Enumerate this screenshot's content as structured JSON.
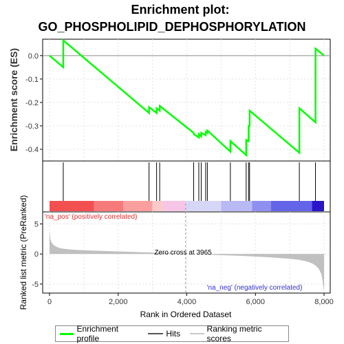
{
  "chart_data": {
    "type": "line",
    "title_line1": "Enrichment plot:",
    "title_line2": "GO_PHOSPHOLIPID_DEPHOSPHORYLATION",
    "top_ylabel": "Enrichment score (ES)",
    "bottom_ylabel": "Ranked list metric (PreRanked)",
    "xlabel": "Rank in Ordered Dataset",
    "xlim": [
      0,
      8000
    ],
    "x_ticks": [
      "0",
      "2,000",
      "4,000",
      "6,000",
      "8,000"
    ],
    "x_tick_values": [
      0,
      2000,
      4000,
      6000,
      8000
    ],
    "minor_x_ticks": [
      1000,
      3000,
      5000,
      7000
    ],
    "es_ylim": [
      -0.45,
      0.07
    ],
    "es_ticks": [
      "0.0",
      "-0.1",
      "-0.2",
      "-0.3",
      "-0.4"
    ],
    "es_tick_values": [
      0.0,
      -0.1,
      -0.2,
      -0.3,
      -0.4
    ],
    "metric_ylim": [
      -6.5,
      7
    ],
    "metric_ticks": [
      "5",
      "0",
      "-5"
    ],
    "metric_tick_values": [
      5,
      0,
      -5
    ],
    "zero_cross_label": "Zero cross at 3965",
    "zero_cross_rank": 3965,
    "pos_label": "'na_pos' (positively correlated)",
    "neg_label": "'na_neg' (negatively correlated)",
    "hits": [
      400,
      2900,
      3120,
      3210,
      4200,
      4350,
      4420,
      4550,
      4600,
      5270,
      5730,
      5800,
      5830,
      7280,
      7750
    ],
    "es_curve": {
      "x": [
        0,
        400,
        401,
        2900,
        2901,
        3120,
        3121,
        3210,
        3211,
        4200,
        4201,
        4350,
        4351,
        4420,
        4421,
        4550,
        4551,
        4600,
        4601,
        5270,
        5271,
        5730,
        5731,
        5800,
        5801,
        5830,
        5831,
        7280,
        7281,
        7750,
        7751,
        8000
      ],
      "y": [
        0.0,
        -0.05,
        0.065,
        -0.245,
        -0.22,
        -0.245,
        -0.225,
        -0.235,
        -0.215,
        -0.33,
        -0.335,
        -0.35,
        -0.335,
        -0.345,
        -0.33,
        -0.34,
        -0.325,
        -0.33,
        -0.32,
        -0.41,
        -0.365,
        -0.425,
        -0.36,
        -0.365,
        -0.3,
        -0.3,
        -0.235,
        -0.415,
        -0.225,
        -0.285,
        0.03,
        0.0
      ]
    },
    "metric_profile": {
      "x": [
        0,
        20,
        60,
        120,
        200,
        300,
        400,
        600,
        800,
        1000,
        1500,
        2000,
        2500,
        3000,
        3500,
        3965,
        4500,
        5000,
        5500,
        6000,
        6500,
        7000,
        7300,
        7500,
        7650,
        7750,
        7850,
        7920,
        7960,
        8000
      ],
      "y": [
        4.0,
        2.6,
        1.9,
        1.5,
        1.2,
        1.0,
        0.88,
        0.75,
        0.68,
        0.62,
        0.52,
        0.42,
        0.33,
        0.24,
        0.13,
        0.0,
        -0.1,
        -0.2,
        -0.3,
        -0.42,
        -0.58,
        -0.8,
        -1.0,
        -1.25,
        -1.55,
        -1.9,
        -2.5,
        -3.3,
        -4.5,
        -6.3
      ]
    },
    "colors": {
      "es_line": "#00ff00",
      "hit": "#000000",
      "metric_fill": "#c0c0c0",
      "pos_text": "#e03030",
      "neg_text": "#3030d0",
      "grid": "#e0e0e0"
    },
    "heat_bands": [
      {
        "from": 0,
        "to": 1300,
        "color": "#f25050"
      },
      {
        "from": 1300,
        "to": 2150,
        "color": "#f77a7a"
      },
      {
        "from": 2150,
        "to": 3000,
        "color": "#fa9e9e"
      },
      {
        "from": 3000,
        "to": 3300,
        "color": "#fccaca"
      },
      {
        "from": 3300,
        "to": 3965,
        "color": "#f7c5e6"
      },
      {
        "from": 3965,
        "to": 5000,
        "color": "#d6d6f7"
      },
      {
        "from": 5000,
        "to": 5900,
        "color": "#b9b9f5"
      },
      {
        "from": 5900,
        "to": 6450,
        "color": "#8f8ff0"
      },
      {
        "from": 6450,
        "to": 7650,
        "color": "#6464e8"
      },
      {
        "from": 7650,
        "to": 8000,
        "color": "#2a16c8"
      }
    ]
  },
  "legend": {
    "items": [
      {
        "label": "Enrichment profile",
        "color": "#00ff00",
        "kind": "line-thick"
      },
      {
        "label": "Hits",
        "color": "#555555",
        "kind": "line"
      },
      {
        "label": "Ranking metric scores",
        "color": "#c8c8c8",
        "kind": "line"
      }
    ]
  }
}
